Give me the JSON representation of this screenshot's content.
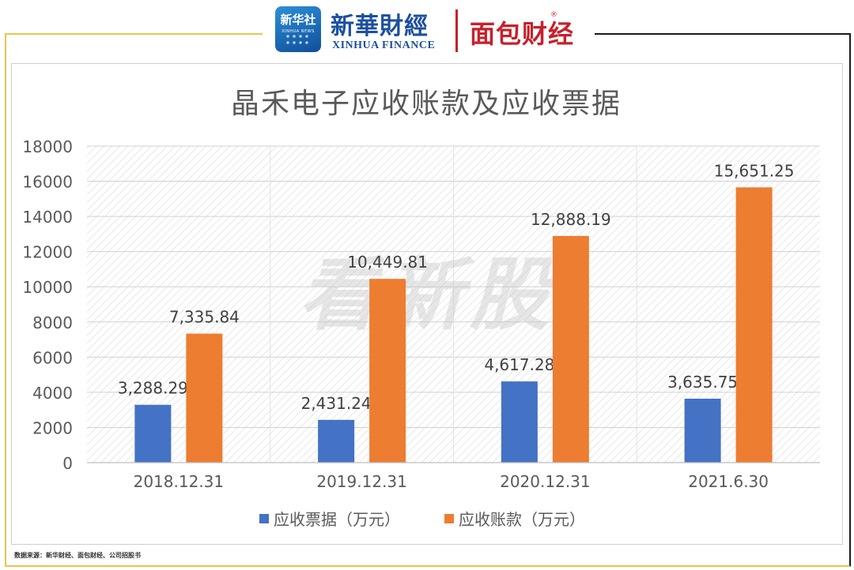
{
  "header": {
    "logo_badge_text": "新华社",
    "logo_badge_sub": "XINHUA NEWS",
    "brand_cn": "新華財經",
    "brand_en": "XINHUA FINANCE",
    "partner_logo": "面包财经",
    "partner_reg": "®"
  },
  "watermark": "看新股",
  "source_note": "数据来源：新华财经、面包财经、公司招股书",
  "colors": {
    "series1": "#4472c4",
    "series2": "#ed7d31",
    "frame_gold": "#e9c44a",
    "title": "#595959"
  },
  "chart_data": {
    "type": "bar",
    "title": "晶禾电子应收账款及应收票据",
    "categories": [
      "2018.12.31",
      "2019.12.31",
      "2020.12.31",
      "2021.6.30"
    ],
    "series": [
      {
        "name": "应收票据（万元）",
        "values": [
          3288.29,
          2431.24,
          4617.28,
          3635.75
        ],
        "labels": [
          "3,288.29",
          "2,431.24",
          "4,617.28",
          "3,635.75"
        ]
      },
      {
        "name": "应收账款（万元）",
        "values": [
          7335.84,
          10449.81,
          12888.19,
          15651.25
        ],
        "labels": [
          "7,335.84",
          "10,449.81",
          "12,888.19",
          "15,651.25"
        ]
      }
    ],
    "yticks": [
      "0",
      "2000",
      "4000",
      "6000",
      "8000",
      "10000",
      "12000",
      "14000",
      "16000",
      "18000"
    ],
    "ylim": [
      0,
      18000
    ],
    "grid": true,
    "legend": "bottom"
  }
}
